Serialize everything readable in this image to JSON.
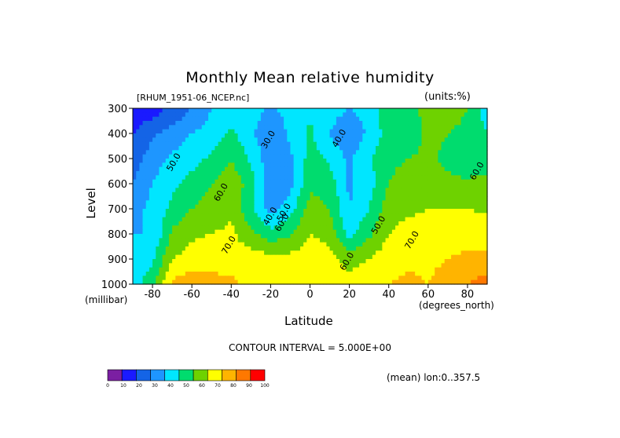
{
  "chart_data": {
    "type": "heatmap",
    "title": "Monthly Mean relative humidity",
    "file_label": "[RHUM_1951-06_NCEP.nc]",
    "units_label": "(units:%)",
    "xlabel": "Latitude",
    "x_unit": "(degrees_north)",
    "ylabel": "Level",
    "y_unit": "(millibar)",
    "xlim": [
      -90,
      90
    ],
    "ylim": [
      300,
      1000
    ],
    "y_inverted": true,
    "x_ticks": [
      -80,
      -60,
      -40,
      -20,
      0,
      20,
      40,
      60,
      80
    ],
    "y_ticks": [
      300,
      400,
      500,
      600,
      700,
      800,
      900,
      1000
    ],
    "contour_interval_text": "CONTOUR INTERVAL = 5.000E+00",
    "contour_labels": [
      {
        "text": "50.0",
        "x": -68,
        "y": 520
      },
      {
        "text": "60.0",
        "x": -44,
        "y": 640
      },
      {
        "text": "30.0",
        "x": -20,
        "y": 430
      },
      {
        "text": "40.0",
        "x": -19,
        "y": 735
      },
      {
        "text": "50.0",
        "x": -12,
        "y": 720
      },
      {
        "text": "60.0",
        "x": -13,
        "y": 760
      },
      {
        "text": "40.0",
        "x": 16,
        "y": 425
      },
      {
        "text": "50.0",
        "x": 36,
        "y": 770
      },
      {
        "text": "60.0",
        "x": 20,
        "y": 915
      },
      {
        "text": "70.0",
        "x": -40,
        "y": 850
      },
      {
        "text": "70.0",
        "x": 53,
        "y": 830
      },
      {
        "text": "60.0",
        "x": 86,
        "y": 555
      }
    ],
    "colorbar": {
      "ticks": [
        0,
        10,
        20,
        30,
        40,
        50,
        60,
        70,
        80,
        90,
        100
      ],
      "colors": [
        "#7b1fa2",
        "#1a1aff",
        "#1464e6",
        "#1e96ff",
        "#00e6ff",
        "#00dc6e",
        "#6ed200",
        "#ffff00",
        "#ffb400",
        "#ff7800",
        "#ff0000"
      ]
    },
    "mean_label": "(mean) lon:0..357.5",
    "grid": false,
    "legend": "bottom colorbar",
    "grid_rows_levels": [
      300,
      400,
      500,
      600,
      700,
      800,
      900,
      1000
    ],
    "grid_cols_lat": [
      -90,
      -80,
      -70,
      -60,
      -50,
      -40,
      -30,
      -20,
      -10,
      0,
      10,
      20,
      30,
      40,
      50,
      60,
      70,
      80,
      90
    ],
    "values": [
      [
        12,
        15,
        22,
        30,
        40,
        42,
        45,
        38,
        44,
        48,
        44,
        40,
        44,
        58,
        55,
        65,
        70,
        60,
        45
      ],
      [
        20,
        28,
        34,
        40,
        44,
        52,
        42,
        32,
        42,
        52,
        40,
        32,
        42,
        55,
        54,
        62,
        60,
        55,
        50
      ],
      [
        25,
        35,
        42,
        46,
        52,
        60,
        48,
        34,
        38,
        54,
        48,
        38,
        48,
        58,
        60,
        62,
        58,
        52,
        52
      ],
      [
        30,
        40,
        48,
        54,
        60,
        66,
        56,
        30,
        36,
        58,
        55,
        38,
        46,
        60,
        64,
        64,
        62,
        62,
        66
      ],
      [
        35,
        44,
        52,
        60,
        64,
        68,
        52,
        36,
        46,
        64,
        60,
        40,
        50,
        66,
        68,
        70,
        70,
        70,
        68
      ],
      [
        40,
        40,
        62,
        68,
        70,
        72,
        62,
        54,
        58,
        70,
        66,
        46,
        58,
        70,
        74,
        74,
        76,
        76,
        76
      ],
      [
        40,
        48,
        70,
        74,
        78,
        76,
        76,
        74,
        74,
        76,
        74,
        64,
        70,
        76,
        78,
        78,
        80,
        82,
        82
      ],
      [
        46,
        56,
        82,
        86,
        82,
        82,
        78,
        78,
        78,
        80,
        78,
        76,
        80,
        80,
        82,
        80,
        84,
        90,
        95
      ]
    ]
  }
}
